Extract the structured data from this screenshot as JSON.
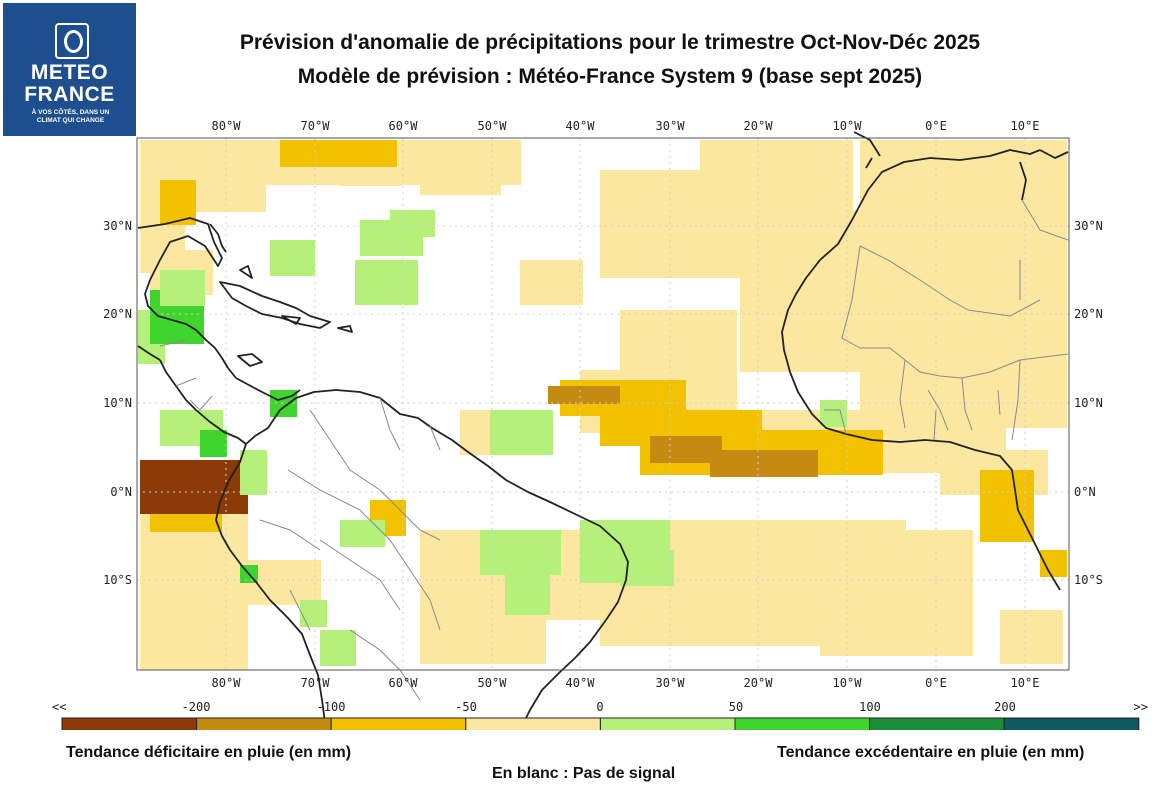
{
  "logo": {
    "line1": "METEO",
    "line2": "FRANCE",
    "tagline": "À VOS CÔTÉS, DANS UN CLIMAT QUI CHANGE"
  },
  "title": {
    "line1": "Prévision d'anomalie de précipitations pour le trimestre Oct-Nov-Déc 2025",
    "line2": "Modèle de prévision : Météo-France System 9 (base sept 2025)"
  },
  "axes": {
    "lon_labels": [
      "80°W",
      "70°W",
      "60°W",
      "50°W",
      "40°W",
      "30°W",
      "20°W",
      "10°W",
      "0°E",
      "10°E"
    ],
    "lat_labels": [
      "30°N",
      "20°N",
      "10°N",
      "0°N",
      "10°S"
    ]
  },
  "colorbar": {
    "ticks": [
      "<<",
      "-200",
      "-100",
      "-50",
      "0",
      "50",
      "100",
      "200",
      ">>"
    ],
    "colors": [
      "#8b3a08",
      "#c48a12",
      "#f2c200",
      "#fbe7a0",
      "#b4f07a",
      "#3fd52e",
      "#1b8e3a",
      "#0e5a63"
    ]
  },
  "legend": {
    "left": "Tendance déficitaire en pluie (en mm)",
    "right": "Tendance excédentaire en pluie (en mm)",
    "note": "En blanc : Pas de signal"
  }
}
